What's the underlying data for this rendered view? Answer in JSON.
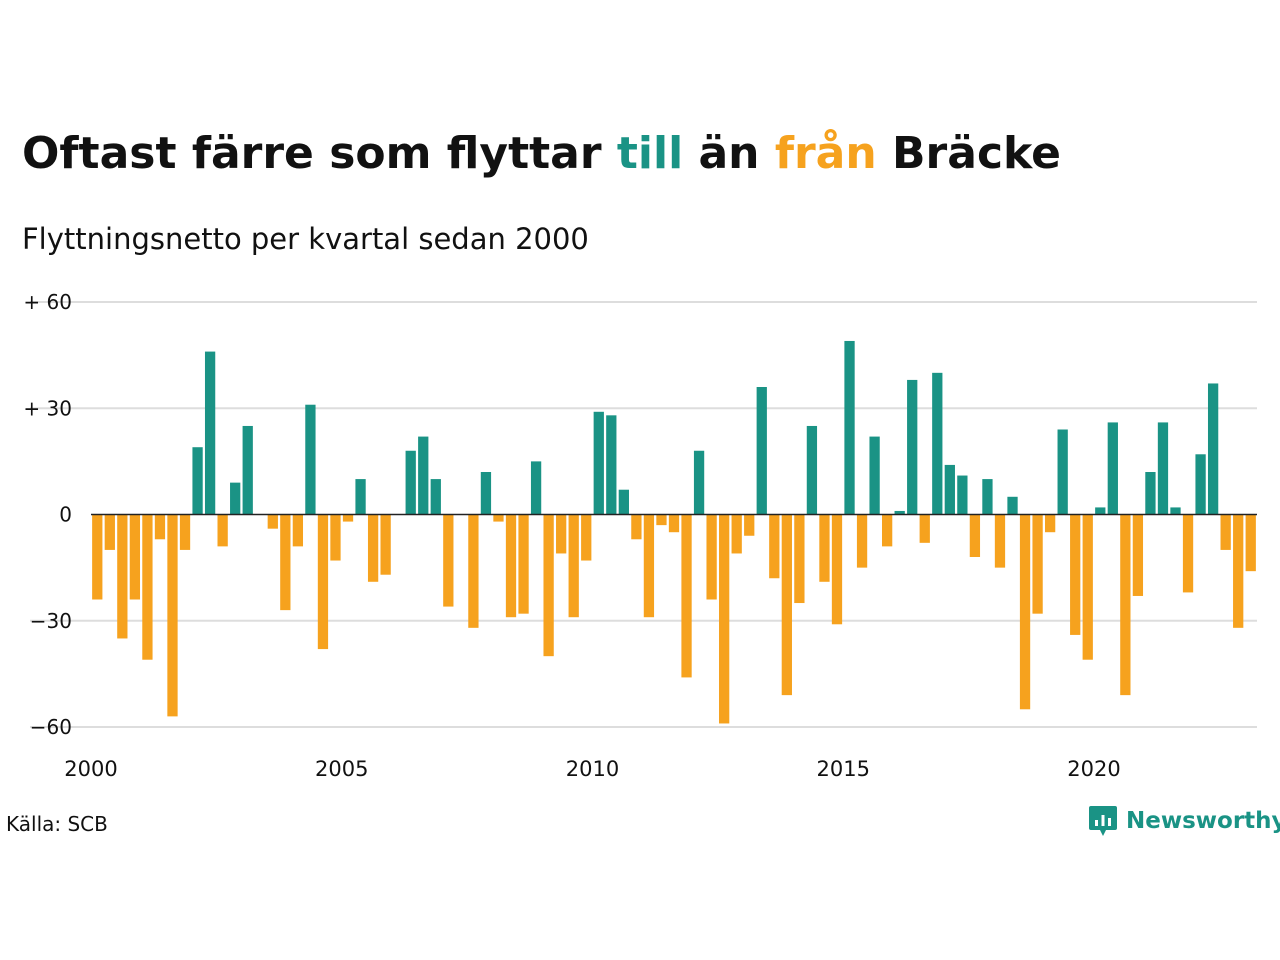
{
  "header": {
    "title_parts": [
      "Oftast färre som flyttar",
      "till",
      "än",
      "från",
      "Bräcke"
    ],
    "subtitle": "Flyttningsnetto per kvartal sedan 2000"
  },
  "footer": {
    "source": "Källa: SCB",
    "brand": "Newsworthy",
    "brand_icon": "newsworthy-logo-icon"
  },
  "colors": {
    "positive": "#1a9385",
    "negative": "#f6a21e",
    "gridline": "#dddddd",
    "zero_line": "#222222",
    "title_till": "#1a9385",
    "title_fran": "#f6a21e"
  },
  "chart_data": {
    "type": "bar",
    "title": "Oftast färre som flyttar till än från Bräcke",
    "subtitle": "Flyttningsnetto per kvartal sedan 2000",
    "xlabel": "",
    "ylabel": "",
    "x_start": 2000,
    "x_end": 2023.25,
    "x_ticks": [
      2000,
      2005,
      2010,
      2015,
      2020
    ],
    "x_tick_labels": [
      "2000",
      "2005",
      "2010",
      "2015",
      "2020"
    ],
    "ylim": [
      -60,
      60
    ],
    "y_ticks": [
      60,
      30,
      0,
      -30,
      -60
    ],
    "y_tick_labels": [
      "+ 60",
      "+ 30",
      "0",
      "−30",
      "−60"
    ],
    "grid": true,
    "categories": [
      "2000 K1",
      "2000 K2",
      "2000 K3",
      "2000 K4",
      "2001 K1",
      "2001 K2",
      "2001 K3",
      "2001 K4",
      "2002 K1",
      "2002 K2",
      "2002 K3",
      "2002 K4",
      "2003 K1",
      "2003 K2",
      "2003 K3",
      "2003 K4",
      "2004 K1",
      "2004 K2",
      "2004 K3",
      "2004 K4",
      "2005 K1",
      "2005 K2",
      "2005 K3",
      "2005 K4",
      "2006 K1",
      "2006 K2",
      "2006 K3",
      "2006 K4",
      "2007 K1",
      "2007 K2",
      "2007 K3",
      "2007 K4",
      "2008 K1",
      "2008 K2",
      "2008 K3",
      "2008 K4",
      "2009 K1",
      "2009 K2",
      "2009 K3",
      "2009 K4",
      "2010 K1",
      "2010 K2",
      "2010 K3",
      "2010 K4",
      "2011 K1",
      "2011 K2",
      "2011 K3",
      "2011 K4",
      "2012 K1",
      "2012 K2",
      "2012 K3",
      "2012 K4",
      "2013 K1",
      "2013 K2",
      "2013 K3",
      "2013 K4",
      "2014 K1",
      "2014 K2",
      "2014 K3",
      "2014 K4",
      "2015 K1",
      "2015 K2",
      "2015 K3",
      "2015 K4",
      "2016 K1",
      "2016 K2",
      "2016 K3",
      "2016 K4",
      "2017 K1",
      "2017 K2",
      "2017 K3",
      "2017 K4",
      "2018 K1",
      "2018 K2",
      "2018 K3",
      "2018 K4",
      "2019 K1",
      "2019 K2",
      "2019 K3",
      "2019 K4",
      "2020 K1",
      "2020 K2",
      "2020 K3",
      "2020 K4",
      "2021 K1",
      "2021 K2",
      "2021 K3",
      "2021 K4",
      "2022 K1",
      "2022 K2",
      "2022 K3",
      "2022 K4",
      "2023 K1"
    ],
    "values": [
      -24,
      -10,
      -35,
      -24,
      -41,
      -7,
      -57,
      -10,
      19,
      46,
      -9,
      9,
      25,
      0,
      -4,
      -27,
      -9,
      31,
      -38,
      -13,
      -2,
      10,
      -19,
      -17,
      0,
      18,
      22,
      10,
      -26,
      0,
      -32,
      12,
      -2,
      -29,
      -28,
      15,
      -40,
      -11,
      -29,
      -13,
      29,
      28,
      7,
      -7,
      -29,
      -3,
      -5,
      -46,
      18,
      -24,
      -59,
      -11,
      -6,
      36,
      -18,
      -51,
      -25,
      25,
      -19,
      -31,
      49,
      -15,
      22,
      -9,
      1,
      38,
      -8,
      40,
      14,
      11,
      -12,
      10,
      -15,
      5,
      -55,
      -28,
      -5,
      24,
      -34,
      -41,
      2,
      26,
      -51,
      -23,
      12,
      26,
      2,
      -22,
      17,
      37,
      -10,
      -32,
      -16
    ]
  }
}
